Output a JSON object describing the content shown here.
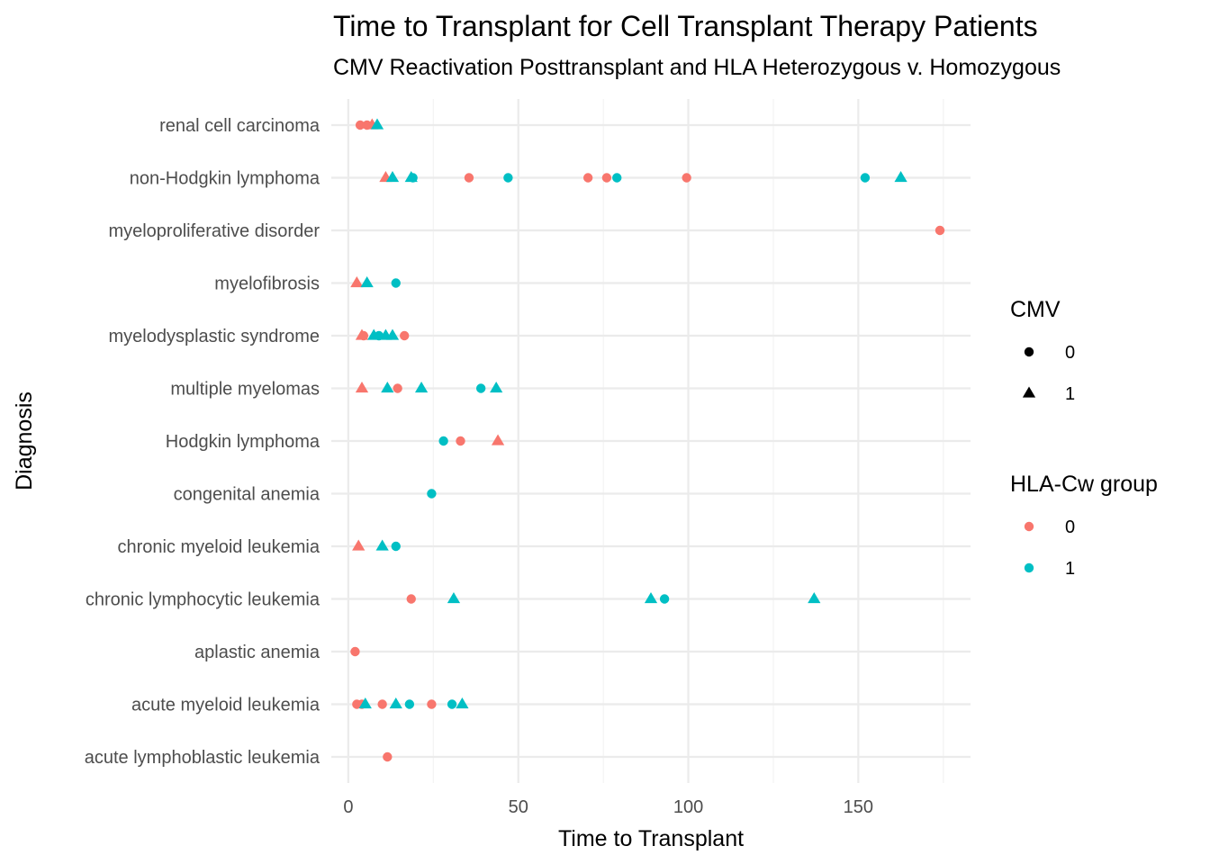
{
  "chart_data": {
    "type": "scatter",
    "title": "Time to Transplant for Cell Transplant Therapy Patients",
    "subtitle": "CMV Reactivation Posttransplant and HLA Heterozygous v. Homozygous",
    "xlabel": "Time to Transplant",
    "ylabel": "Diagnosis",
    "xlim": [
      -5,
      183
    ],
    "x_ticks": [
      0,
      50,
      100,
      150
    ],
    "x_minor_ticks": [
      25,
      75,
      125,
      175
    ],
    "grid": true,
    "categories": [
      "acute lymphoblastic leukemia",
      "acute myeloid leukemia",
      "aplastic anemia",
      "chronic lymphocytic leukemia",
      "chronic myeloid leukemia",
      "congenital anemia",
      "Hodgkin lymphoma",
      "multiple myelomas",
      "myelodysplastic syndrome",
      "myelofibrosis",
      "myeloproliferative disorder",
      "non-Hodgkin lymphoma",
      "renal cell carcinoma"
    ],
    "legends": [
      {
        "title": "CMV",
        "placement": "right",
        "encoding": "shape",
        "entries": [
          {
            "label": "0",
            "shape": "circle"
          },
          {
            "label": "1",
            "shape": "triangle"
          }
        ]
      },
      {
        "title": "HLA-Cw group",
        "placement": "right",
        "encoding": "color",
        "entries": [
          {
            "label": "0",
            "color": "#F8766D"
          },
          {
            "label": "1",
            "color": "#00BFC4"
          }
        ]
      }
    ],
    "points": [
      {
        "diagnosis": "renal cell carcinoma",
        "x": 3.5,
        "cmv": 0,
        "hla": 0
      },
      {
        "diagnosis": "renal cell carcinoma",
        "x": 5.5,
        "cmv": 0,
        "hla": 0
      },
      {
        "diagnosis": "renal cell carcinoma",
        "x": 7,
        "cmv": 1,
        "hla": 0
      },
      {
        "diagnosis": "renal cell carcinoma",
        "x": 8.5,
        "cmv": 1,
        "hla": 1
      },
      {
        "diagnosis": "non-Hodgkin lymphoma",
        "x": 11,
        "cmv": 1,
        "hla": 0
      },
      {
        "diagnosis": "non-Hodgkin lymphoma",
        "x": 13,
        "cmv": 1,
        "hla": 1
      },
      {
        "diagnosis": "non-Hodgkin lymphoma",
        "x": 18.5,
        "cmv": 1,
        "hla": 1
      },
      {
        "diagnosis": "non-Hodgkin lymphoma",
        "x": 19,
        "cmv": 0,
        "hla": 1
      },
      {
        "diagnosis": "non-Hodgkin lymphoma",
        "x": 35.5,
        "cmv": 0,
        "hla": 0
      },
      {
        "diagnosis": "non-Hodgkin lymphoma",
        "x": 47,
        "cmv": 0,
        "hla": 1
      },
      {
        "diagnosis": "non-Hodgkin lymphoma",
        "x": 70.5,
        "cmv": 0,
        "hla": 0
      },
      {
        "diagnosis": "non-Hodgkin lymphoma",
        "x": 76,
        "cmv": 0,
        "hla": 0
      },
      {
        "diagnosis": "non-Hodgkin lymphoma",
        "x": 79,
        "cmv": 0,
        "hla": 1
      },
      {
        "diagnosis": "non-Hodgkin lymphoma",
        "x": 99.5,
        "cmv": 0,
        "hla": 0
      },
      {
        "diagnosis": "non-Hodgkin lymphoma",
        "x": 152,
        "cmv": 0,
        "hla": 1
      },
      {
        "diagnosis": "non-Hodgkin lymphoma",
        "x": 162.5,
        "cmv": 1,
        "hla": 1
      },
      {
        "diagnosis": "myeloproliferative disorder",
        "x": 174,
        "cmv": 0,
        "hla": 0
      },
      {
        "diagnosis": "myelofibrosis",
        "x": 2.5,
        "cmv": 1,
        "hla": 0
      },
      {
        "diagnosis": "myelofibrosis",
        "x": 5.5,
        "cmv": 1,
        "hla": 1
      },
      {
        "diagnosis": "myelofibrosis",
        "x": 14,
        "cmv": 0,
        "hla": 1
      },
      {
        "diagnosis": "myelodysplastic syndrome",
        "x": 4,
        "cmv": 1,
        "hla": 0
      },
      {
        "diagnosis": "myelodysplastic syndrome",
        "x": 4.5,
        "cmv": 0,
        "hla": 0
      },
      {
        "diagnosis": "myelodysplastic syndrome",
        "x": 7.5,
        "cmv": 1,
        "hla": 1
      },
      {
        "diagnosis": "myelodysplastic syndrome",
        "x": 9,
        "cmv": 0,
        "hla": 1
      },
      {
        "diagnosis": "myelodysplastic syndrome",
        "x": 11,
        "cmv": 1,
        "hla": 1
      },
      {
        "diagnosis": "myelodysplastic syndrome",
        "x": 13,
        "cmv": 1,
        "hla": 1
      },
      {
        "diagnosis": "myelodysplastic syndrome",
        "x": 16.5,
        "cmv": 0,
        "hla": 0
      },
      {
        "diagnosis": "multiple myelomas",
        "x": 4,
        "cmv": 1,
        "hla": 0
      },
      {
        "diagnosis": "multiple myelomas",
        "x": 11.5,
        "cmv": 1,
        "hla": 1
      },
      {
        "diagnosis": "multiple myelomas",
        "x": 14.5,
        "cmv": 0,
        "hla": 0
      },
      {
        "diagnosis": "multiple myelomas",
        "x": 21.5,
        "cmv": 1,
        "hla": 1
      },
      {
        "diagnosis": "multiple myelomas",
        "x": 39,
        "cmv": 0,
        "hla": 1
      },
      {
        "diagnosis": "multiple myelomas",
        "x": 43.5,
        "cmv": 1,
        "hla": 1
      },
      {
        "diagnosis": "Hodgkin lymphoma",
        "x": 28,
        "cmv": 0,
        "hla": 1
      },
      {
        "diagnosis": "Hodgkin lymphoma",
        "x": 33,
        "cmv": 0,
        "hla": 0
      },
      {
        "diagnosis": "Hodgkin lymphoma",
        "x": 44,
        "cmv": 1,
        "hla": 0
      },
      {
        "diagnosis": "congenital anemia",
        "x": 24.5,
        "cmv": 0,
        "hla": 1
      },
      {
        "diagnosis": "chronic myeloid leukemia",
        "x": 3,
        "cmv": 1,
        "hla": 0
      },
      {
        "diagnosis": "chronic myeloid leukemia",
        "x": 10,
        "cmv": 1,
        "hla": 1
      },
      {
        "diagnosis": "chronic myeloid leukemia",
        "x": 14,
        "cmv": 0,
        "hla": 1
      },
      {
        "diagnosis": "chronic lymphocytic leukemia",
        "x": 18.5,
        "cmv": 0,
        "hla": 0
      },
      {
        "diagnosis": "chronic lymphocytic leukemia",
        "x": 31,
        "cmv": 1,
        "hla": 1
      },
      {
        "diagnosis": "chronic lymphocytic leukemia",
        "x": 89,
        "cmv": 1,
        "hla": 1
      },
      {
        "diagnosis": "chronic lymphocytic leukemia",
        "x": 93,
        "cmv": 0,
        "hla": 1
      },
      {
        "diagnosis": "chronic lymphocytic leukemia",
        "x": 137,
        "cmv": 1,
        "hla": 1
      },
      {
        "diagnosis": "aplastic anemia",
        "x": 2,
        "cmv": 0,
        "hla": 0
      },
      {
        "diagnosis": "acute myeloid leukemia",
        "x": 2.5,
        "cmv": 0,
        "hla": 0
      },
      {
        "diagnosis": "acute myeloid leukemia",
        "x": 4,
        "cmv": 0,
        "hla": 0
      },
      {
        "diagnosis": "acute myeloid leukemia",
        "x": 5,
        "cmv": 1,
        "hla": 1
      },
      {
        "diagnosis": "acute myeloid leukemia",
        "x": 10,
        "cmv": 0,
        "hla": 0
      },
      {
        "diagnosis": "acute myeloid leukemia",
        "x": 14,
        "cmv": 1,
        "hla": 1
      },
      {
        "diagnosis": "acute myeloid leukemia",
        "x": 18,
        "cmv": 0,
        "hla": 1
      },
      {
        "diagnosis": "acute myeloid leukemia",
        "x": 24.5,
        "cmv": 0,
        "hla": 0
      },
      {
        "diagnosis": "acute myeloid leukemia",
        "x": 30.5,
        "cmv": 0,
        "hla": 1
      },
      {
        "diagnosis": "acute myeloid leukemia",
        "x": 33.5,
        "cmv": 1,
        "hla": 1
      },
      {
        "diagnosis": "acute lymphoblastic leukemia",
        "x": 11.5,
        "cmv": 0,
        "hla": 0
      }
    ]
  }
}
